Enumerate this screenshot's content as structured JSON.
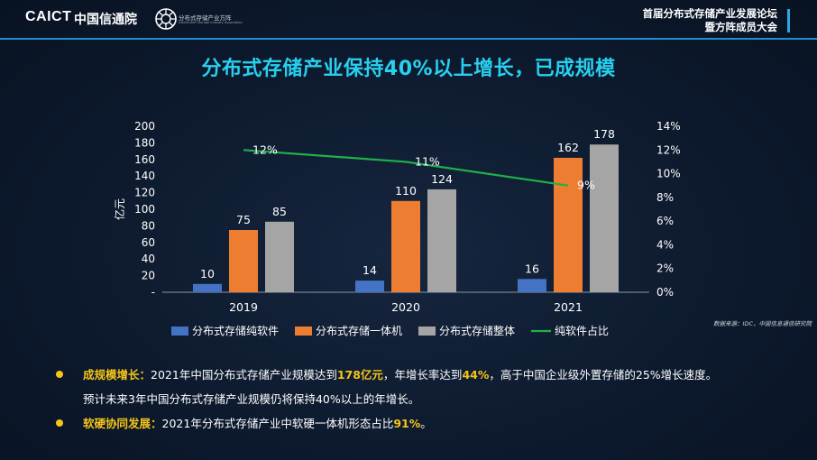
{
  "header": {
    "logo_en": "CAICT",
    "logo_cn": "中国信通院",
    "alliance_name": "分布式存储产业方阵",
    "alliance_en": "Distributed Storage Industry Association",
    "forum_line1": "首届分布式存储产业发展论坛",
    "forum_line2": "暨方阵成员大会"
  },
  "title": "分布式存储产业保持40%以上增长，已成规模",
  "source": "数据来源：IDC，中国信息通信研究院",
  "chart_data": {
    "type": "bar",
    "categories": [
      "2019",
      "2020",
      "2021"
    ],
    "series": [
      {
        "name": "分布式存储纯软件",
        "values": [
          10,
          14,
          16
        ],
        "color": "#4472c4",
        "labels": [
          "10",
          "14",
          "16"
        ]
      },
      {
        "name": "分布式存储一体机",
        "values": [
          75,
          110,
          162
        ],
        "color": "#ed7d31",
        "labels": [
          "75",
          "110",
          "162"
        ]
      },
      {
        "name": "分布式存储整体",
        "values": [
          85,
          124,
          178
        ],
        "color": "#a5a5a5",
        "labels": [
          "85",
          "124",
          "178"
        ]
      }
    ],
    "line_series": {
      "name": "纯软件占比",
      "values": [
        12,
        11,
        9
      ],
      "color": "#1fb14a",
      "labels": [
        "12%",
        "11%",
        "9%"
      ]
    },
    "ylabel": "亿元",
    "ylim": [
      0,
      200
    ],
    "y_ticks": [
      "-",
      "20",
      "40",
      "60",
      "80",
      "100",
      "120",
      "140",
      "160",
      "180",
      "200"
    ],
    "y2lim": [
      0,
      14
    ],
    "y2_ticks": [
      "0%",
      "2%",
      "4%",
      "6%",
      "8%",
      "10%",
      "12%",
      "14%"
    ],
    "legend_position": "bottom",
    "grid": false
  },
  "bullets": [
    {
      "label": "成规模增长：",
      "text1": "2021年中国分布式存储产业规模达到",
      "hl1": "178亿元",
      "text2": "，年增长率达到",
      "hl2": "44%",
      "text3": "，高于中国企业级外置存储的25%增长速度。",
      "line2": "预计未来3年中国分布式存储产业规模仍将保持40%以上的年增长。"
    },
    {
      "label": "软硬协同发展：",
      "text1": "2021年分布式存储产业中软硬一体机形态占比",
      "hl1": "91%",
      "text2": "。"
    }
  ],
  "colors": {
    "accent": "#27d0ee",
    "highlight": "#f5c518",
    "line": "#1e8fd0"
  }
}
